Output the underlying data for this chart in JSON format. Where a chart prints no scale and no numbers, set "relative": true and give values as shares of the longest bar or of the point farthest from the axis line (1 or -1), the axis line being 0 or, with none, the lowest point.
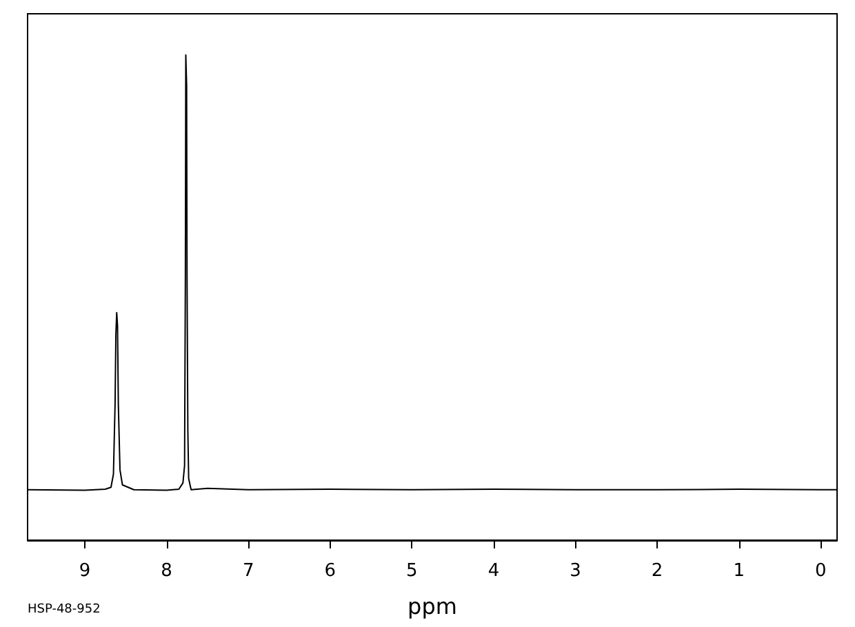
{
  "chart_data": {
    "type": "line",
    "relative": true,
    "xlabel": "ppm",
    "annotations": [
      "HSP-48-952"
    ],
    "xlim": [
      9.7,
      -0.2
    ],
    "xticks": [
      9,
      8,
      7,
      6,
      5,
      4,
      3,
      2,
      1,
      0
    ],
    "series": [
      {
        "color": "#000000",
        "x": [
          9.7,
          9.0,
          8.75,
          8.68,
          8.65,
          8.63,
          8.62,
          8.61,
          8.6,
          8.59,
          8.57,
          8.54,
          8.4,
          8.0,
          7.85,
          7.8,
          7.78,
          7.77,
          7.765,
          7.755,
          7.75,
          7.74,
          7.73,
          7.7,
          7.5,
          7,
          6,
          5,
          4,
          3,
          2,
          1,
          0,
          -0.2
        ],
        "values": [
          0.104,
          0.103,
          0.105,
          0.109,
          0.136,
          0.28,
          0.424,
          0.469,
          0.442,
          0.28,
          0.145,
          0.114,
          0.104,
          0.103,
          0.105,
          0.118,
          0.154,
          0.55,
          1.0,
          0.937,
          0.55,
          0.226,
          0.127,
          0.104,
          0.107,
          0.104,
          0.105,
          0.104,
          0.105,
          0.104,
          0.104,
          0.105,
          0.104,
          0.104
        ]
      }
    ]
  }
}
